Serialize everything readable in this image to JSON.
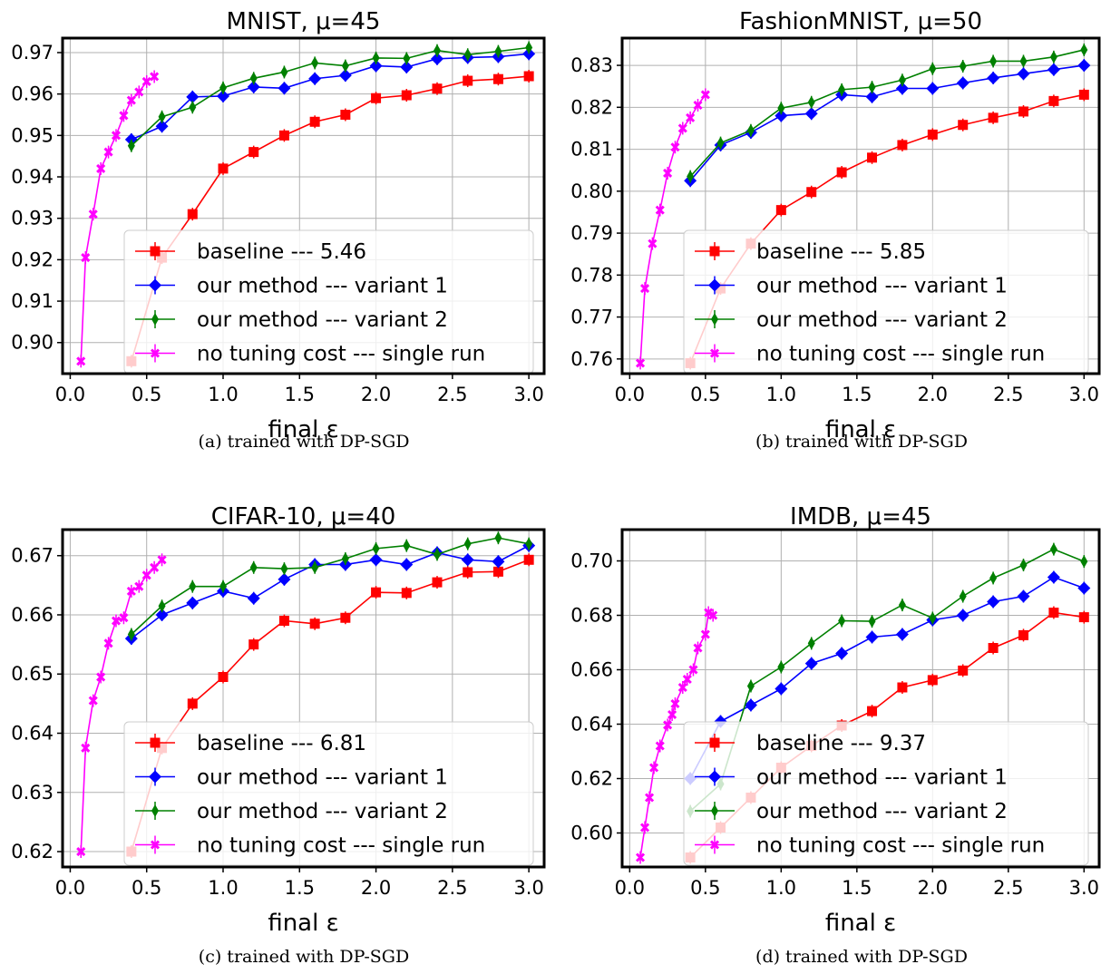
{
  "colors": {
    "baseline": "#ff0000",
    "variant1": "#0000ff",
    "variant2": "#008000",
    "single_run": "#ff00ff"
  },
  "chart_data": [
    {
      "type": "line",
      "title": "MNIST, μ=45",
      "xlabel": "final ε",
      "caption": "(a) trained with DP-SGD",
      "xlim": [
        -0.05,
        3.1
      ],
      "ylim": [
        0.8925,
        0.9735
      ],
      "xticks": [
        "0.0",
        "0.5",
        "1.0",
        "1.5",
        "2.0",
        "2.5",
        "3.0"
      ],
      "yticks": [
        "0.90",
        "0.91",
        "0.92",
        "0.93",
        "0.94",
        "0.95",
        "0.96",
        "0.97"
      ],
      "legend_placement": "lower right",
      "series": [
        {
          "name": "baseline --- 5.46",
          "color": "#ff0000",
          "marker": "square",
          "x": [
            0.4,
            0.6,
            0.8,
            1.0,
            1.2,
            1.4,
            1.6,
            1.8,
            2.0,
            2.2,
            2.4,
            2.6,
            2.8,
            3.0
          ],
          "y": [
            0.8955,
            0.9205,
            0.931,
            0.942,
            0.946,
            0.95,
            0.9533,
            0.955,
            0.959,
            0.9597,
            0.9613,
            0.9632,
            0.9636,
            0.9643
          ]
        },
        {
          "name": "our method --- variant 1",
          "color": "#0000ff",
          "marker": "diamond",
          "x": [
            0.4,
            0.6,
            0.8,
            1.0,
            1.2,
            1.4,
            1.6,
            1.8,
            2.0,
            2.2,
            2.4,
            2.6,
            2.8,
            3.0
          ],
          "y": [
            0.949,
            0.9522,
            0.9593,
            0.9595,
            0.9617,
            0.9614,
            0.9637,
            0.9645,
            0.9668,
            0.9665,
            0.9685,
            0.9688,
            0.969,
            0.9697
          ]
        },
        {
          "name": "our method --- variant 2",
          "color": "#008000",
          "marker": "thin_diamond",
          "x": [
            0.4,
            0.6,
            0.8,
            1.0,
            1.2,
            1.4,
            1.6,
            1.8,
            2.0,
            2.2,
            2.4,
            2.6,
            2.8,
            3.0
          ],
          "y": [
            0.9475,
            0.9545,
            0.9568,
            0.9615,
            0.9638,
            0.9653,
            0.9675,
            0.9668,
            0.9687,
            0.9686,
            0.9705,
            0.9695,
            0.9703,
            0.9712
          ]
        },
        {
          "name": "no tuning cost --- single run",
          "color": "#ff00ff",
          "marker": "x",
          "x": [
            0.07,
            0.1,
            0.15,
            0.2,
            0.25,
            0.3,
            0.35,
            0.4,
            0.45,
            0.5,
            0.55
          ],
          "y": [
            0.8955,
            0.9205,
            0.931,
            0.942,
            0.946,
            0.95,
            0.9548,
            0.9585,
            0.9605,
            0.963,
            0.9642
          ]
        }
      ]
    },
    {
      "type": "line",
      "title": "FashionMNIST, μ=50",
      "xlabel": "final ε",
      "caption": "(b) trained with DP-SGD",
      "xlim": [
        -0.05,
        3.1
      ],
      "ylim": [
        0.7565,
        0.8365
      ],
      "xticks": [
        "0.0",
        "0.5",
        "1.0",
        "1.5",
        "2.0",
        "2.5",
        "3.0"
      ],
      "yticks": [
        "0.76",
        "0.77",
        "0.78",
        "0.79",
        "0.80",
        "0.81",
        "0.82",
        "0.83"
      ],
      "legend_placement": "lower right",
      "series": [
        {
          "name": "baseline --- 5.85",
          "color": "#ff0000",
          "marker": "square",
          "x": [
            0.4,
            0.6,
            0.8,
            1.0,
            1.2,
            1.4,
            1.6,
            1.8,
            2.0,
            2.2,
            2.4,
            2.6,
            2.8,
            3.0
          ],
          "y": [
            0.759,
            0.7768,
            0.7875,
            0.7955,
            0.7998,
            0.8045,
            0.808,
            0.811,
            0.8135,
            0.8158,
            0.8175,
            0.819,
            0.8215,
            0.823
          ]
        },
        {
          "name": "our method --- variant 1",
          "color": "#0000ff",
          "marker": "diamond",
          "x": [
            0.4,
            0.6,
            0.8,
            1.0,
            1.2,
            1.4,
            1.6,
            1.8,
            2.0,
            2.2,
            2.4,
            2.6,
            2.8,
            3.0
          ],
          "y": [
            0.8025,
            0.811,
            0.814,
            0.818,
            0.8185,
            0.823,
            0.8225,
            0.8245,
            0.8245,
            0.8258,
            0.827,
            0.828,
            0.829,
            0.83
          ]
        },
        {
          "name": "our method --- variant 2",
          "color": "#008000",
          "marker": "thin_diamond",
          "x": [
            0.4,
            0.6,
            0.8,
            1.0,
            1.2,
            1.4,
            1.6,
            1.8,
            2.0,
            2.2,
            2.4,
            2.6,
            2.8,
            3.0
          ],
          "y": [
            0.8035,
            0.8115,
            0.8145,
            0.8198,
            0.8212,
            0.8242,
            0.8248,
            0.8265,
            0.8292,
            0.8298,
            0.831,
            0.831,
            0.832,
            0.8337
          ]
        },
        {
          "name": "no tuning cost --- single run",
          "color": "#ff00ff",
          "marker": "x",
          "x": [
            0.07,
            0.1,
            0.15,
            0.2,
            0.25,
            0.3,
            0.35,
            0.4,
            0.45,
            0.5
          ],
          "y": [
            0.759,
            0.7768,
            0.7875,
            0.7955,
            0.8043,
            0.8105,
            0.815,
            0.8175,
            0.8205,
            0.823
          ]
        }
      ]
    },
    {
      "type": "line",
      "title": "CIFAR-10, μ=40",
      "xlabel": "final ε",
      "caption": "(c) trained with DP-SGD",
      "xlim": [
        -0.05,
        3.1
      ],
      "ylim": [
        0.6174,
        0.6744
      ],
      "xticks": [
        "0.0",
        "0.5",
        "1.0",
        "1.5",
        "2.0",
        "2.5",
        "3.0"
      ],
      "yticks": [
        "0.62",
        "0.63",
        "0.64",
        "0.65",
        "0.66",
        "0.67"
      ],
      "legend_placement": "lower right",
      "series": [
        {
          "name": "baseline --- 6.81",
          "color": "#ff0000",
          "marker": "square",
          "x": [
            0.4,
            0.6,
            0.8,
            1.0,
            1.2,
            1.4,
            1.6,
            1.8,
            2.0,
            2.2,
            2.4,
            2.6,
            2.8,
            3.0
          ],
          "y": [
            0.62,
            0.6375,
            0.645,
            0.6495,
            0.655,
            0.659,
            0.6585,
            0.6595,
            0.6638,
            0.6637,
            0.6655,
            0.6672,
            0.6673,
            0.6693
          ]
        },
        {
          "name": "our method --- variant 1",
          "color": "#0000ff",
          "marker": "diamond",
          "x": [
            0.4,
            0.6,
            0.8,
            1.0,
            1.2,
            1.4,
            1.6,
            1.8,
            2.0,
            2.2,
            2.4,
            2.6,
            2.8,
            3.0
          ],
          "y": [
            0.656,
            0.66,
            0.662,
            0.664,
            0.6628,
            0.666,
            0.6685,
            0.6685,
            0.6693,
            0.6685,
            0.6705,
            0.6693,
            0.669,
            0.6717
          ]
        },
        {
          "name": "our method --- variant 2",
          "color": "#008000",
          "marker": "thin_diamond",
          "x": [
            0.4,
            0.6,
            0.8,
            1.0,
            1.2,
            1.4,
            1.6,
            1.8,
            2.0,
            2.2,
            2.4,
            2.6,
            2.8,
            3.0
          ],
          "y": [
            0.6567,
            0.6615,
            0.6648,
            0.6648,
            0.668,
            0.6678,
            0.668,
            0.6695,
            0.6712,
            0.6717,
            0.6702,
            0.672,
            0.673,
            0.672
          ]
        },
        {
          "name": "no tuning cost --- single run",
          "color": "#ff00ff",
          "marker": "x",
          "x": [
            0.07,
            0.1,
            0.15,
            0.2,
            0.25,
            0.3,
            0.35,
            0.4,
            0.45,
            0.5,
            0.55,
            0.6
          ],
          "y": [
            0.62,
            0.6375,
            0.6455,
            0.6495,
            0.6552,
            0.659,
            0.6595,
            0.664,
            0.6648,
            0.6667,
            0.668,
            0.6693
          ]
        }
      ]
    },
    {
      "type": "line",
      "title": "IMDB, μ=45",
      "xlabel": "final ε",
      "caption": "(d) trained with DP-SGD",
      "xlim": [
        -0.05,
        3.1
      ],
      "ylim": [
        0.5875,
        0.7115
      ],
      "xticks": [
        "0.0",
        "0.5",
        "1.0",
        "1.5",
        "2.0",
        "2.5",
        "3.0"
      ],
      "yticks": [
        "0.60",
        "0.62",
        "0.64",
        "0.66",
        "0.68",
        "0.70"
      ],
      "legend_placement": "lower right",
      "series": [
        {
          "name": "baseline --- 9.37",
          "color": "#ff0000",
          "marker": "square",
          "x": [
            0.4,
            0.6,
            0.8,
            1.0,
            1.2,
            1.4,
            1.6,
            1.8,
            2.0,
            2.2,
            2.4,
            2.6,
            2.8,
            3.0
          ],
          "y": [
            0.591,
            0.602,
            0.613,
            0.624,
            0.632,
            0.6395,
            0.6448,
            0.6535,
            0.6562,
            0.6597,
            0.668,
            0.6727,
            0.681,
            0.6793
          ]
        },
        {
          "name": "our method --- variant 1",
          "color": "#0000ff",
          "marker": "diamond",
          "x": [
            0.4,
            0.6,
            0.8,
            1.0,
            1.2,
            1.4,
            1.6,
            1.8,
            2.0,
            2.2,
            2.4,
            2.6,
            2.8,
            3.0
          ],
          "y": [
            0.62,
            0.641,
            0.647,
            0.653,
            0.6623,
            0.666,
            0.672,
            0.673,
            0.6783,
            0.68,
            0.685,
            0.687,
            0.694,
            0.69
          ]
        },
        {
          "name": "our method --- variant 2",
          "color": "#008000",
          "marker": "thin_diamond",
          "x": [
            0.4,
            0.6,
            0.8,
            1.0,
            1.2,
            1.4,
            1.6,
            1.8,
            2.0,
            2.2,
            2.4,
            2.6,
            2.8,
            3.0
          ],
          "y": [
            0.608,
            0.618,
            0.654,
            0.661,
            0.6697,
            0.678,
            0.6778,
            0.6838,
            0.679,
            0.687,
            0.6937,
            0.6985,
            0.7043,
            0.6998
          ]
        },
        {
          "name": "no tuning cost --- single run",
          "color": "#ff00ff",
          "marker": "x",
          "x": [
            0.07,
            0.1,
            0.13,
            0.16,
            0.2,
            0.25,
            0.28,
            0.3,
            0.35,
            0.38,
            0.42,
            0.45,
            0.5,
            0.52,
            0.55
          ],
          "y": [
            0.591,
            0.602,
            0.613,
            0.624,
            0.632,
            0.6397,
            0.6435,
            0.6475,
            0.6535,
            0.6565,
            0.66,
            0.668,
            0.673,
            0.681,
            0.68
          ]
        }
      ]
    }
  ]
}
